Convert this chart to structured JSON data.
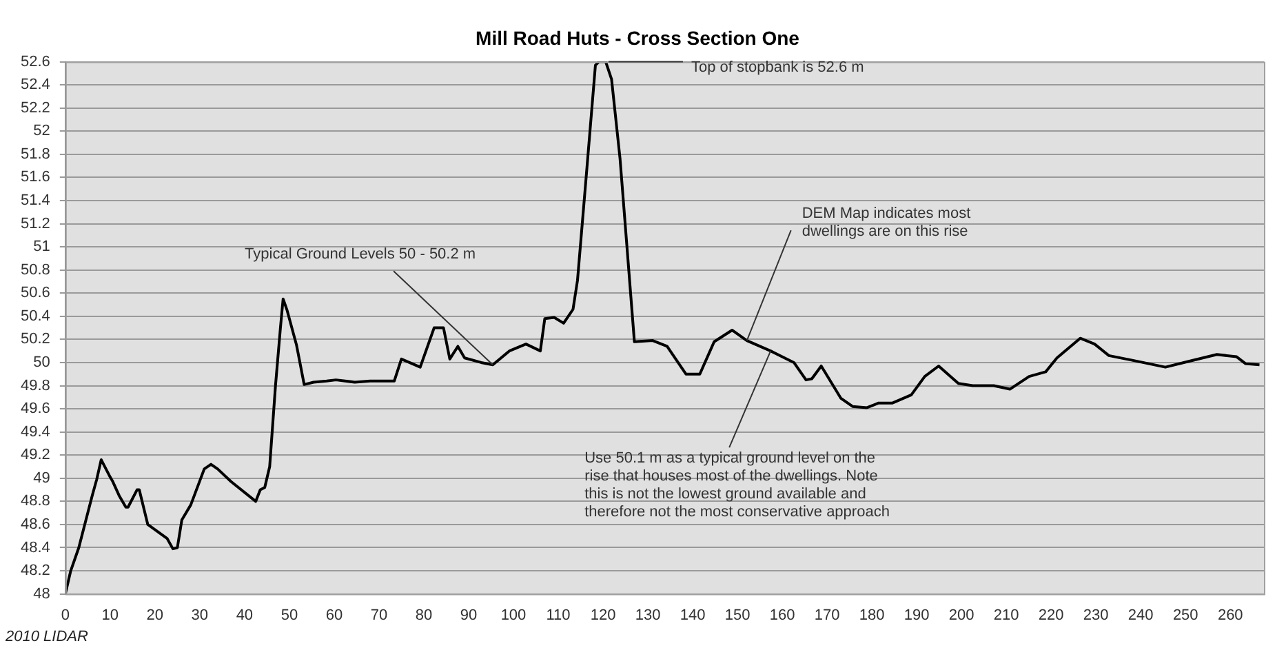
{
  "chart_data": {
    "type": "line",
    "title": "Mill Road Huts - Cross Section One",
    "x": [
      0,
      1.2,
      3,
      6,
      7,
      8,
      10,
      10.6,
      12,
      13.5,
      14,
      16,
      16.5,
      18.4,
      22.7,
      24,
      25,
      26,
      28,
      31,
      32.5,
      34,
      37,
      42.5,
      43.5,
      44.5,
      45.6,
      46.9,
      48,
      48.6,
      49.5,
      51.6,
      53.3,
      55.4,
      58.3,
      60.4,
      64.6,
      68,
      73.4,
      75,
      79.2,
      82.3,
      84.4,
      85.8,
      87.6,
      89.1,
      92.8,
      95.4,
      99.1,
      102.8,
      106,
      107,
      109.1,
      111.2,
      113.3,
      114.3,
      116.4,
      118.3,
      119.1,
      120.6,
      121.9,
      123.8,
      127,
      131.1,
      134.3,
      138.5,
      141.6,
      144.8,
      148.8,
      152.1,
      157.4,
      162.6,
      165.3,
      166.6,
      168.7,
      173.1,
      175.7,
      178.9,
      181.5,
      184.6,
      188.8,
      191.8,
      194.9,
      199.3,
      202.5,
      207.2,
      210.8,
      215.1,
      218.8,
      221.3,
      226.5,
      229.7,
      232.9,
      238.1,
      245.5,
      250.7,
      257,
      261.4,
      263.4,
      266.5
    ],
    "series": [
      {
        "color": "#000000",
        "values": [
          48.0,
          48.2,
          48.4,
          48.85,
          48.99,
          49.16,
          49.01,
          48.97,
          48.85,
          48.75,
          48.75,
          48.9,
          48.9,
          48.6,
          48.48,
          48.39,
          48.4,
          48.64,
          48.77,
          49.08,
          49.12,
          49.08,
          48.97,
          48.8,
          48.9,
          48.92,
          49.1,
          49.8,
          50.3,
          50.55,
          50.45,
          50.15,
          49.81,
          49.83,
          49.84,
          49.85,
          49.83,
          49.84,
          49.84,
          50.03,
          49.96,
          50.3,
          50.3,
          50.03,
          50.14,
          50.04,
          50.0,
          49.98,
          50.1,
          50.16,
          50.1,
          50.38,
          50.39,
          50.34,
          50.46,
          50.71,
          51.68,
          52.57,
          52.6,
          52.6,
          52.45,
          51.76,
          50.18,
          50.19,
          50.14,
          49.9,
          49.9,
          50.18,
          50.28,
          50.19,
          50.1,
          50.0,
          49.85,
          49.86,
          49.97,
          49.69,
          49.62,
          49.61,
          49.65,
          49.65,
          49.72,
          49.88,
          49.97,
          49.82,
          49.8,
          49.8,
          49.77,
          49.88,
          49.92,
          50.04,
          50.21,
          50.16,
          50.06,
          50.02,
          49.96,
          50.01,
          50.07,
          50.05,
          49.99,
          49.98
        ]
      }
    ],
    "xlim": [
      0,
      267.5
    ],
    "xticks": [
      0,
      10,
      20,
      30,
      40,
      50,
      60,
      70,
      80,
      90,
      100,
      110,
      120,
      130,
      140,
      150,
      160,
      170,
      180,
      190,
      200,
      210,
      220,
      230,
      240,
      250,
      260
    ],
    "ylim": [
      48,
      52.6
    ],
    "yticks": [
      48,
      48.2,
      48.4,
      48.6,
      48.8,
      49,
      49.2,
      49.4,
      49.6,
      49.8,
      50,
      50.2,
      50.4,
      50.6,
      50.8,
      51,
      51.2,
      51.4,
      51.6,
      51.8,
      52,
      52.2,
      52.4,
      52.6
    ],
    "grid": "y",
    "marker": "none",
    "line_style": "solid",
    "legend": false,
    "annotations": [
      {
        "text": "Top of stopbank is 52.6 m",
        "x": 120.6,
        "y": 52.6
      },
      {
        "text": "Typical Ground Levels 50 - 50.2 m",
        "x": 95.4,
        "y": 49.98
      },
      {
        "text": "DEM Map indicates most dwellings are on this rise",
        "x": 152.1,
        "y": 50.19
      },
      {
        "text": "Use 50.1 m as a typical ground level on the rise that houses most of the dwellings. Note this is not the lowest ground available and therefore not the most conservative approach",
        "x": 157.4,
        "y": 50.1
      },
      "2010 LIDAR"
    ]
  }
}
